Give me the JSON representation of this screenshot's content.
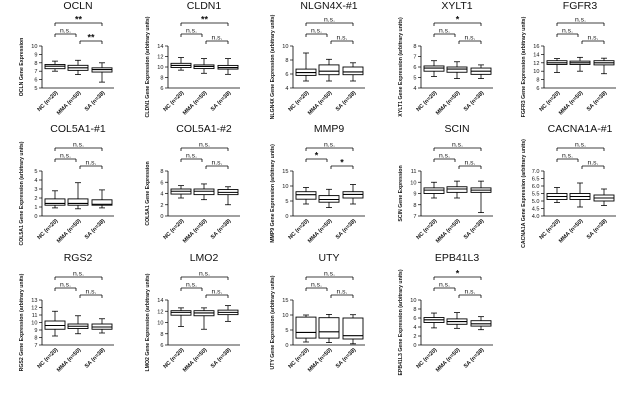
{
  "chart_data": [
    {
      "type": "box",
      "title": "OCLN",
      "ylabel": "OCLN Gene Expression",
      "ylim": [
        5,
        10
      ],
      "yticks": [
        "5",
        "6",
        "7",
        "8",
        "9",
        "10"
      ],
      "categories": [
        "NC (n=20)",
        "MMA (n=50)",
        "SA (n=38)"
      ],
      "boxes": [
        {
          "min": 7.0,
          "q1": 7.3,
          "median": 7.6,
          "q3": 7.8,
          "max": 8.2
        },
        {
          "min": 6.6,
          "q1": 7.1,
          "median": 7.4,
          "q3": 7.7,
          "max": 8.3
        },
        {
          "min": 5.7,
          "q1": 6.9,
          "median": 7.2,
          "q3": 7.4,
          "max": 8.0
        }
      ],
      "annotations": [
        {
          "from": 0,
          "to": 2,
          "label": "**"
        },
        {
          "from": 0,
          "to": 1,
          "label": "n.s."
        },
        {
          "from": 1,
          "to": 2,
          "label": "**"
        }
      ]
    },
    {
      "type": "box",
      "title": "CLDN1",
      "ylabel": "CLDN1 Gene Expression (arbitrary units)",
      "ylim": [
        6,
        14
      ],
      "yticks": [
        "6",
        "8",
        "10",
        "12",
        "14"
      ],
      "categories": [
        "NC (n=20)",
        "MMA (n=50)",
        "SA (n=38)"
      ],
      "boxes": [
        {
          "min": 9.4,
          "q1": 9.9,
          "median": 10.3,
          "q3": 10.7,
          "max": 11.8
        },
        {
          "min": 8.8,
          "q1": 9.7,
          "median": 10.1,
          "q3": 10.4,
          "max": 11.6
        },
        {
          "min": 8.6,
          "q1": 9.6,
          "median": 9.9,
          "q3": 10.3,
          "max": 11.6
        }
      ],
      "annotations": [
        {
          "from": 0,
          "to": 2,
          "label": "**"
        },
        {
          "from": 0,
          "to": 1,
          "label": "n.s."
        },
        {
          "from": 1,
          "to": 2,
          "label": "n.s."
        }
      ]
    },
    {
      "type": "box",
      "title": "NLGN4X-#1",
      "ylabel": "NLGN4X Gene Expression (arbitrary units)",
      "ylim": [
        4,
        10
      ],
      "yticks": [
        "4",
        "6",
        "8",
        "10"
      ],
      "categories": [
        "NC (n=20)",
        "MMA (n=50)",
        "SA (n=38)"
      ],
      "boxes": [
        {
          "min": 5.0,
          "q1": 5.8,
          "median": 6.2,
          "q3": 6.7,
          "max": 9.0
        },
        {
          "min": 5.0,
          "q1": 5.9,
          "median": 6.4,
          "q3": 7.3,
          "max": 8.1
        },
        {
          "min": 5.0,
          "q1": 5.9,
          "median": 6.3,
          "q3": 7.0,
          "max": 7.6
        }
      ],
      "annotations": [
        {
          "from": 0,
          "to": 2,
          "label": "n.s."
        },
        {
          "from": 0,
          "to": 1,
          "label": "n.s."
        },
        {
          "from": 1,
          "to": 2,
          "label": "n.s."
        }
      ]
    },
    {
      "type": "box",
      "title": "XYLT1",
      "ylabel": "XYLT1 Gene Expression (arbitrary units)",
      "ylim": [
        4,
        8
      ],
      "yticks": [
        "4",
        "5",
        "6",
        "7",
        "8"
      ],
      "categories": [
        "NC (n=20)",
        "MMA (n=50)",
        "SA (n=38)"
      ],
      "boxes": [
        {
          "min": 5.1,
          "q1": 5.6,
          "median": 5.9,
          "q3": 6.1,
          "max": 6.6
        },
        {
          "min": 4.9,
          "q1": 5.5,
          "median": 5.8,
          "q3": 6.0,
          "max": 6.5
        },
        {
          "min": 4.9,
          "q1": 5.3,
          "median": 5.6,
          "q3": 5.9,
          "max": 6.2
        }
      ],
      "annotations": [
        {
          "from": 0,
          "to": 2,
          "label": "*"
        },
        {
          "from": 0,
          "to": 1,
          "label": "n.s."
        },
        {
          "from": 1,
          "to": 2,
          "label": "n.s."
        }
      ]
    },
    {
      "type": "box",
      "title": "FGFR3",
      "ylabel": "FGFR3 Gene Expression (arbitrary units)",
      "ylim": [
        6,
        16
      ],
      "yticks": [
        "6",
        "8",
        "10",
        "12",
        "14",
        "16"
      ],
      "categories": [
        "NC (n=20)",
        "MMA (n=50)",
        "SA (n=38)"
      ],
      "boxes": [
        {
          "min": 9.7,
          "q1": 11.6,
          "median": 12.0,
          "q3": 12.5,
          "max": 13.0
        },
        {
          "min": 10.0,
          "q1": 11.6,
          "median": 12.0,
          "q3": 12.4,
          "max": 13.3
        },
        {
          "min": 9.4,
          "q1": 11.5,
          "median": 12.0,
          "q3": 12.5,
          "max": 13.1
        }
      ],
      "annotations": [
        {
          "from": 0,
          "to": 2,
          "label": "n.s."
        },
        {
          "from": 0,
          "to": 1,
          "label": "n.s."
        },
        {
          "from": 1,
          "to": 2,
          "label": "n.s."
        }
      ]
    },
    {
      "type": "box",
      "title": "COL5A1-#1",
      "ylabel": "COL5A1 Gene Expression (arbitrary units)",
      "ylim": [
        0,
        5
      ],
      "yticks": [
        "0",
        "1",
        "2",
        "3",
        "4",
        "5"
      ],
      "categories": [
        "NC (n=20)",
        "MMA (n=50)",
        "SA (n=38)"
      ],
      "boxes": [
        {
          "min": 0.9,
          "q1": 1.2,
          "median": 1.4,
          "q3": 1.9,
          "max": 2.8
        },
        {
          "min": 0.8,
          "q1": 1.2,
          "median": 1.4,
          "q3": 1.9,
          "max": 3.7
        },
        {
          "min": 0.9,
          "q1": 1.2,
          "median": 1.3,
          "q3": 1.8,
          "max": 2.9
        }
      ],
      "annotations": [
        {
          "from": 0,
          "to": 2,
          "label": "n.s."
        },
        {
          "from": 0,
          "to": 1,
          "label": "n.s."
        },
        {
          "from": 1,
          "to": 2,
          "label": "n.s."
        }
      ]
    },
    {
      "type": "box",
      "title": "COL5A1-#2",
      "ylabel": "COL5A1 Gene Expression",
      "ylim": [
        0,
        8
      ],
      "yticks": [
        "0",
        "2",
        "4",
        "6",
        "8"
      ],
      "categories": [
        "NC (n=20)",
        "MMA (n=50)",
        "SA (n=38)"
      ],
      "boxes": [
        {
          "min": 3.2,
          "q1": 3.9,
          "median": 4.4,
          "q3": 4.8,
          "max": 5.4
        },
        {
          "min": 2.9,
          "q1": 3.8,
          "median": 4.4,
          "q3": 4.8,
          "max": 5.7
        },
        {
          "min": 2.0,
          "q1": 3.8,
          "median": 4.2,
          "q3": 4.7,
          "max": 5.2
        }
      ],
      "annotations": [
        {
          "from": 0,
          "to": 2,
          "label": "n.s."
        },
        {
          "from": 0,
          "to": 1,
          "label": "n.s."
        },
        {
          "from": 1,
          "to": 2,
          "label": "n.s."
        }
      ]
    },
    {
      "type": "box",
      "title": "MMP9",
      "ylabel": "MMP9 Gene Expression (arbitrary units)",
      "ylim": [
        0,
        15
      ],
      "yticks": [
        "0",
        "5",
        "10",
        "15"
      ],
      "categories": [
        "NC (n=20)",
        "MMA (n=50)",
        "SA (n=38)"
      ],
      "boxes": [
        {
          "min": 4.0,
          "q1": 5.6,
          "median": 7.1,
          "q3": 8.1,
          "max": 9.5
        },
        {
          "min": 2.8,
          "q1": 4.6,
          "median": 5.5,
          "q3": 6.8,
          "max": 8.9
        },
        {
          "min": 4.0,
          "q1": 6.0,
          "median": 7.2,
          "q3": 8.1,
          "max": 10.5
        }
      ],
      "annotations": [
        {
          "from": 0,
          "to": 2,
          "label": "n.s."
        },
        {
          "from": 0,
          "to": 1,
          "label": "*"
        },
        {
          "from": 1,
          "to": 2,
          "label": "*"
        }
      ]
    },
    {
      "type": "box",
      "title": "SCIN",
      "ylabel": "SCIN Gene Expression",
      "ylim": [
        7,
        11
      ],
      "yticks": [
        "7",
        "8",
        "9",
        "10",
        "11"
      ],
      "categories": [
        "NC (n=20)",
        "MMA (n=50)",
        "SA (n=38)"
      ],
      "boxes": [
        {
          "min": 8.6,
          "q1": 9.0,
          "median": 9.3,
          "q3": 9.5,
          "max": 10.0
        },
        {
          "min": 8.6,
          "q1": 9.1,
          "median": 9.4,
          "q3": 9.6,
          "max": 10.1
        },
        {
          "min": 7.3,
          "q1": 9.1,
          "median": 9.3,
          "q3": 9.5,
          "max": 10.1
        }
      ],
      "annotations": [
        {
          "from": 0,
          "to": 2,
          "label": "n.s."
        },
        {
          "from": 0,
          "to": 1,
          "label": "n.s."
        },
        {
          "from": 1,
          "to": 2,
          "label": "n.s."
        }
      ]
    },
    {
      "type": "box",
      "title": "CACNA1A-#1",
      "ylabel": "CACNA1A Gene Expression (arbitrary units)",
      "ylim": [
        4,
        7
      ],
      "yticks": [
        "4.0",
        "4.5",
        "5.0",
        "5.5",
        "6.0",
        "6.5",
        "7.0"
      ],
      "categories": [
        "NC (n=20)",
        "MMA (n=50)",
        "SA (n=38)"
      ],
      "boxes": [
        {
          "min": 4.9,
          "q1": 5.1,
          "median": 5.3,
          "q3": 5.5,
          "max": 5.9
        },
        {
          "min": 4.6,
          "q1": 5.1,
          "median": 5.3,
          "q3": 5.5,
          "max": 6.2
        },
        {
          "min": 4.7,
          "q1": 5.0,
          "median": 5.2,
          "q3": 5.4,
          "max": 5.8
        }
      ],
      "annotations": [
        {
          "from": 0,
          "to": 2,
          "label": "n.s."
        },
        {
          "from": 0,
          "to": 1,
          "label": "n.s."
        },
        {
          "from": 1,
          "to": 2,
          "label": "n.s."
        }
      ]
    },
    {
      "type": "box",
      "title": "RGS2",
      "ylabel": "RGS2 Gene Expression (arbitrary units)",
      "ylim": [
        7,
        13
      ],
      "yticks": [
        "7",
        "8",
        "9",
        "10",
        "11",
        "12",
        "13"
      ],
      "categories": [
        "NC (n=20)",
        "MMA (n=50)",
        "SA (n=38)"
      ],
      "boxes": [
        {
          "min": 8.2,
          "q1": 9.1,
          "median": 9.6,
          "q3": 10.2,
          "max": 11.5
        },
        {
          "min": 8.5,
          "q1": 9.2,
          "median": 9.5,
          "q3": 9.8,
          "max": 10.9
        },
        {
          "min": 8.6,
          "q1": 9.1,
          "median": 9.4,
          "q3": 9.8,
          "max": 10.5
        }
      ],
      "annotations": [
        {
          "from": 0,
          "to": 2,
          "label": "n.s."
        },
        {
          "from": 0,
          "to": 1,
          "label": "n.s."
        },
        {
          "from": 1,
          "to": 2,
          "label": "n.s."
        }
      ]
    },
    {
      "type": "box",
      "title": "LMO2",
      "ylabel": "LMO2 Gene Expression (arbitrary units)",
      "ylim": [
        6,
        14
      ],
      "yticks": [
        "6",
        "8",
        "10",
        "12",
        "14"
      ],
      "categories": [
        "NC (n=20)",
        "MMA (n=50)",
        "SA (n=38)"
      ],
      "boxes": [
        {
          "min": 9.3,
          "q1": 11.3,
          "median": 11.8,
          "q3": 12.1,
          "max": 12.6
        },
        {
          "min": 8.8,
          "q1": 11.2,
          "median": 11.7,
          "q3": 12.1,
          "max": 12.6
        },
        {
          "min": 10.2,
          "q1": 11.4,
          "median": 11.8,
          "q3": 12.2,
          "max": 13.0
        }
      ],
      "annotations": [
        {
          "from": 0,
          "to": 2,
          "label": "n.s."
        },
        {
          "from": 0,
          "to": 1,
          "label": "n.s."
        },
        {
          "from": 1,
          "to": 2,
          "label": "n.s."
        }
      ]
    },
    {
      "type": "box",
      "title": "UTY",
      "ylabel": "UTY Gene Expression (arbitrary units)",
      "ylim": [
        0,
        15
      ],
      "yticks": [
        "0",
        "5",
        "10",
        "15"
      ],
      "categories": [
        "NC (n=20)",
        "MMA (n=50)",
        "SA (n=38)"
      ],
      "boxes": [
        {
          "min": 1.0,
          "q1": 2.3,
          "median": 4.2,
          "q3": 9.3,
          "max": 10.0
        },
        {
          "min": 0.8,
          "q1": 2.3,
          "median": 4.4,
          "q3": 9.1,
          "max": 10.2
        },
        {
          "min": 0.4,
          "q1": 2.0,
          "median": 3.1,
          "q3": 9.0,
          "max": 10.1
        }
      ],
      "annotations": [
        {
          "from": 0,
          "to": 2,
          "label": "n.s."
        },
        {
          "from": 0,
          "to": 1,
          "label": "n.s."
        },
        {
          "from": 1,
          "to": 2,
          "label": "n.s."
        }
      ]
    },
    {
      "type": "box",
      "title": "EPB41L3",
      "ylabel": "EPB41L3 Gene Expression (arbitrary units)",
      "ylim": [
        0,
        10
      ],
      "yticks": [
        "0",
        "2",
        "4",
        "6",
        "8",
        "10"
      ],
      "categories": [
        "NC (n=20)",
        "MMA (n=50)",
        "SA (n=38)"
      ],
      "boxes": [
        {
          "min": 3.8,
          "q1": 5.0,
          "median": 5.6,
          "q3": 6.1,
          "max": 7.1
        },
        {
          "min": 3.7,
          "q1": 4.6,
          "median": 5.2,
          "q3": 5.8,
          "max": 7.2
        },
        {
          "min": 3.4,
          "q1": 4.2,
          "median": 4.7,
          "q3": 5.4,
          "max": 6.3
        }
      ],
      "annotations": [
        {
          "from": 0,
          "to": 2,
          "label": "*"
        },
        {
          "from": 0,
          "to": 1,
          "label": "n.s."
        },
        {
          "from": 1,
          "to": 2,
          "label": "n.s."
        }
      ]
    }
  ]
}
